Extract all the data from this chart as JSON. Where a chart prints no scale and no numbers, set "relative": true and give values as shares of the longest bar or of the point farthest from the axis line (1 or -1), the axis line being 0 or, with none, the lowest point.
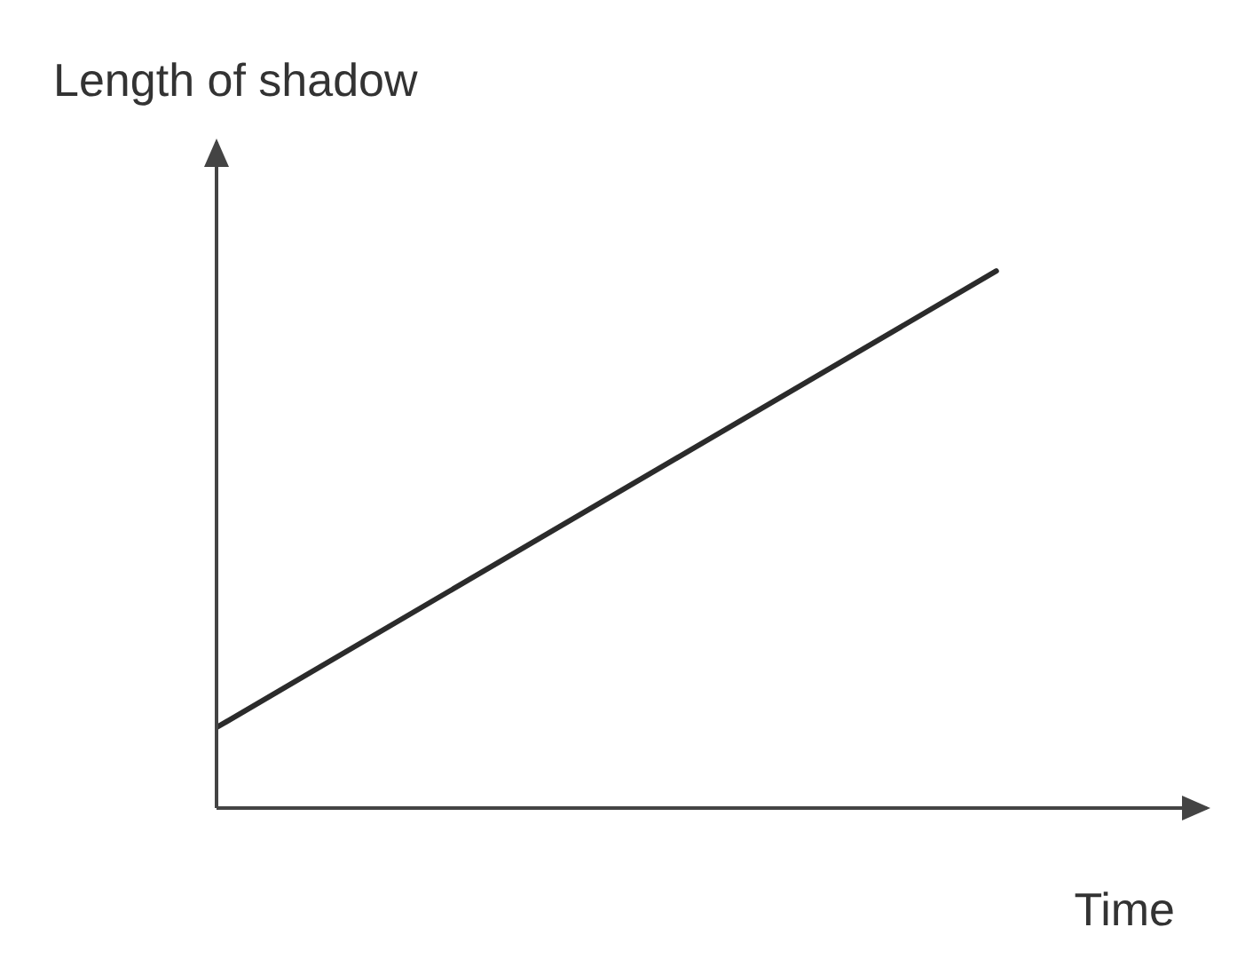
{
  "chart_data": {
    "type": "line",
    "xlabel": "Time",
    "ylabel": "Length of shadow",
    "relative": true,
    "categories": [
      null,
      null
    ],
    "series": [
      {
        "color": "#2b2b2b",
        "values": [
          0.15,
          1
        ]
      }
    ],
    "grid": false,
    "legend": false,
    "marker": "none",
    "line_style": "solid"
  }
}
